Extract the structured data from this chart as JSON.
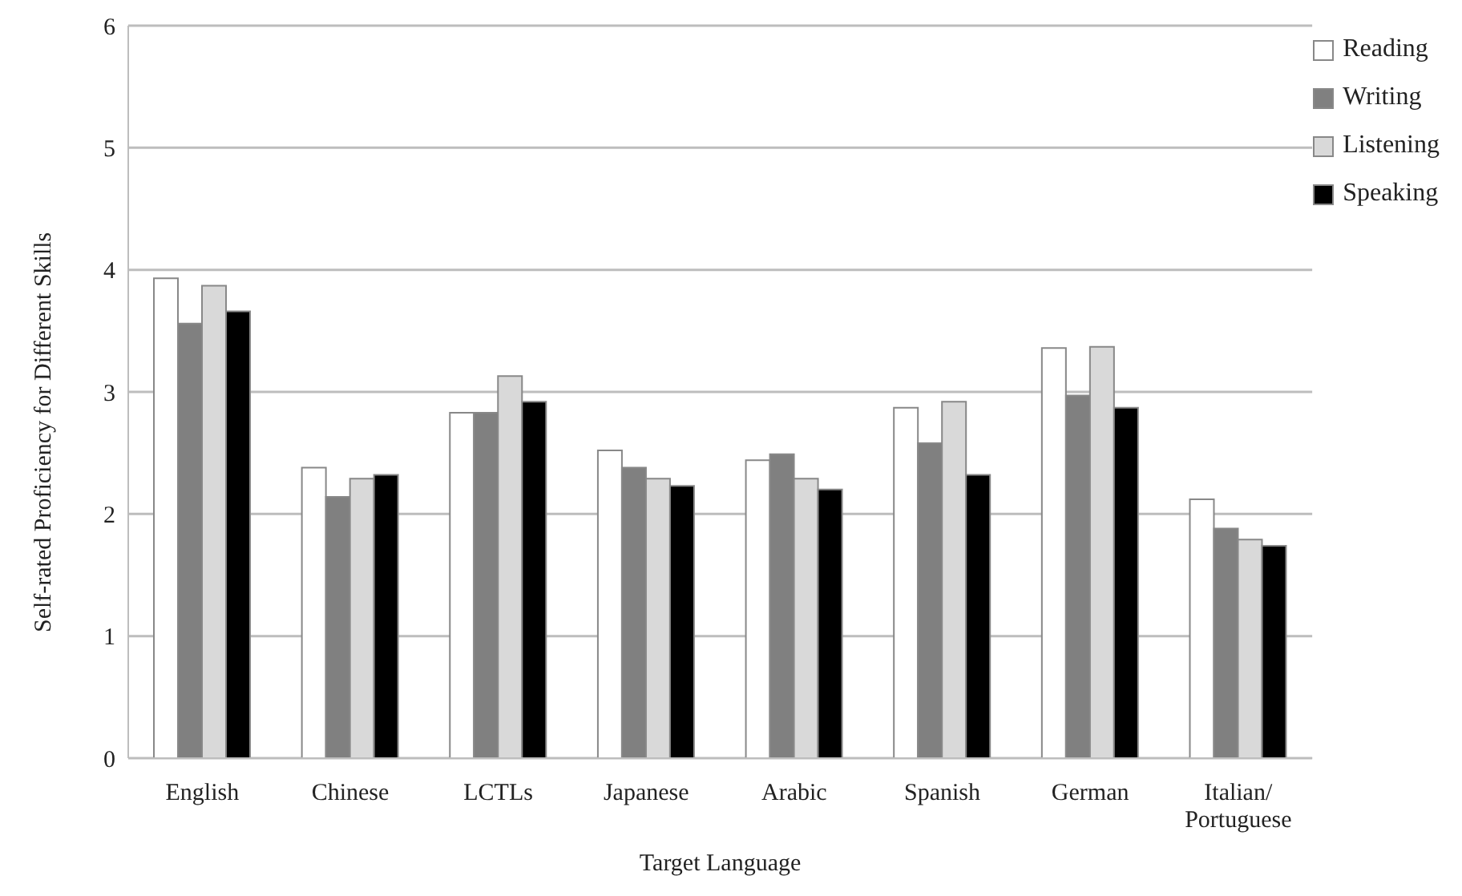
{
  "chart_data": {
    "type": "bar",
    "xlabel": "Target Language",
    "ylabel": "Self-rated Proficiency for Different Skills",
    "categories": [
      "English",
      "Chinese",
      "LCTLs",
      "Japanese",
      "Arabic",
      "Spanish",
      "German",
      "Italian/Portuguese"
    ],
    "series": [
      {
        "name": "Reading",
        "color": "#ffffff",
        "values": [
          3.93,
          2.38,
          2.83,
          2.52,
          2.44,
          2.87,
          3.36,
          2.12
        ]
      },
      {
        "name": "Writing",
        "color": "#808080",
        "values": [
          3.56,
          2.14,
          2.83,
          2.38,
          2.49,
          2.58,
          2.97,
          1.88
        ]
      },
      {
        "name": "Listening",
        "color": "#d9d9d9",
        "values": [
          3.87,
          2.29,
          3.13,
          2.29,
          2.29,
          2.92,
          3.37,
          1.79
        ]
      },
      {
        "name": "Speaking",
        "color": "#000000",
        "values": [
          3.66,
          2.32,
          2.92,
          2.23,
          2.2,
          2.32,
          2.87,
          1.74
        ]
      }
    ],
    "ylim": [
      0,
      6
    ],
    "yticks": [
      0,
      1,
      2,
      3,
      4,
      5,
      6
    ],
    "grid": "y",
    "legend": "top right"
  }
}
